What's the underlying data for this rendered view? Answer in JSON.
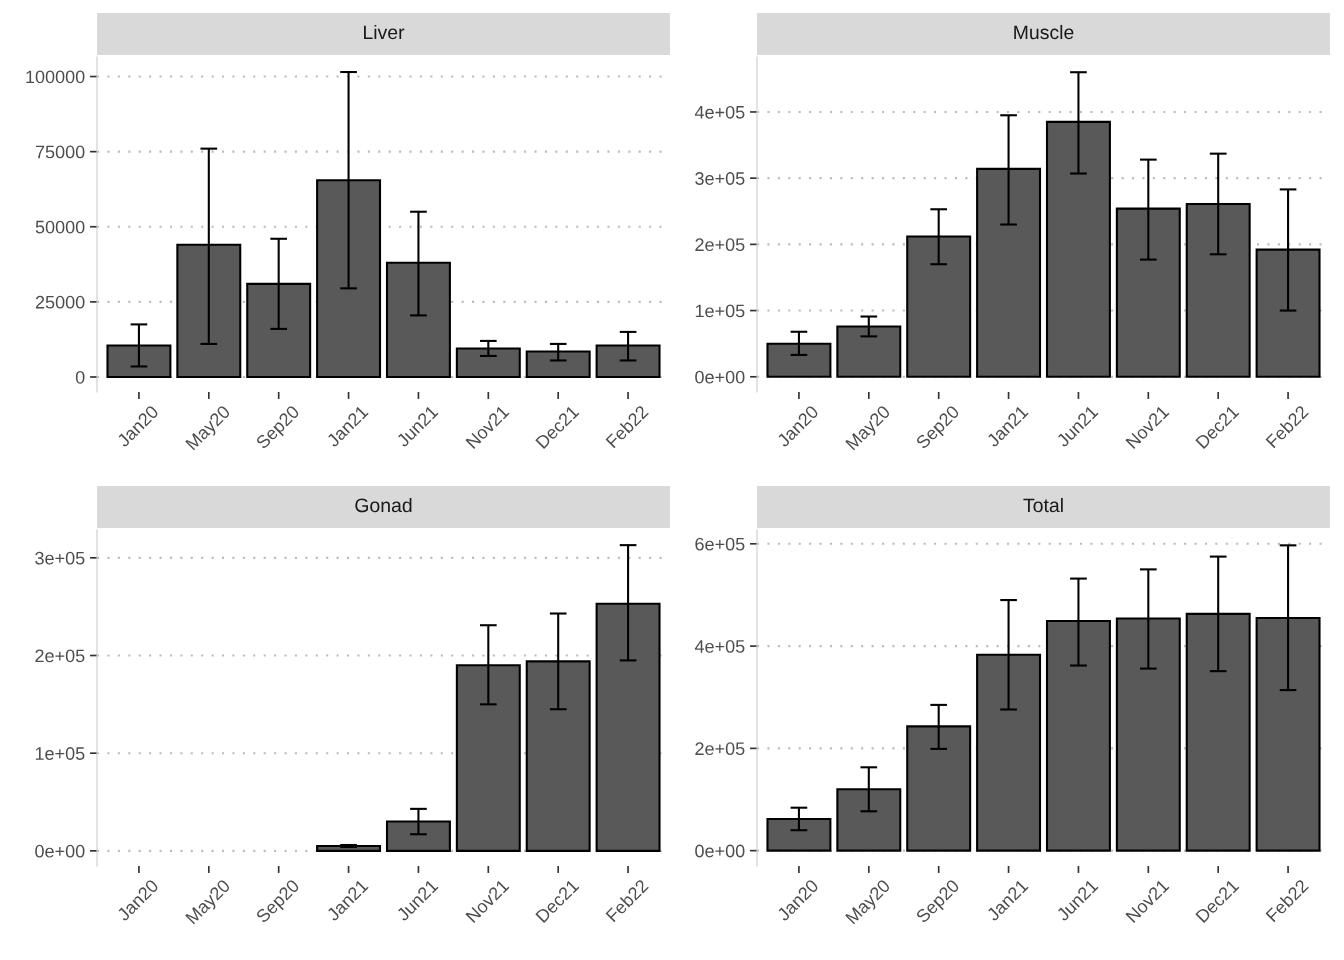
{
  "chart_data": [
    {
      "type": "bar",
      "title": "Liver",
      "categories": [
        "Jan20",
        "May20",
        "Sep20",
        "Jan21",
        "Jun21",
        "Nov21",
        "Dec21",
        "Feb22"
      ],
      "color": "#595959",
      "grid": "y",
      "values": [
        10500,
        44000,
        31000,
        65500,
        38000,
        9500,
        8500,
        10500
      ],
      "errors": [
        [
          3500,
          17500
        ],
        [
          11000,
          76000
        ],
        [
          16000,
          46000
        ],
        [
          29500,
          101500
        ],
        [
          20500,
          55000
        ],
        [
          7000,
          12000
        ],
        [
          5500,
          11000
        ],
        [
          5500,
          15000
        ]
      ],
      "ylim": [
        -5000,
        106500
      ],
      "yticks": [
        0,
        25000,
        50000,
        75000,
        100000
      ]
    },
    {
      "type": "bar",
      "title": "Muscle",
      "categories": [
        "Jan20",
        "May20",
        "Sep20",
        "Jan21",
        "Jun21",
        "Nov21",
        "Dec21",
        "Feb22"
      ],
      "color": "#595959",
      "grid": "y",
      "values": [
        50000,
        76000,
        212000,
        314000,
        385000,
        254000,
        261000,
        192000
      ],
      "errors": [
        [
          33000,
          68000
        ],
        [
          61000,
          91000
        ],
        [
          170000,
          253000
        ],
        [
          230000,
          395000
        ],
        [
          307000,
          460000
        ],
        [
          177000,
          328000
        ],
        [
          185000,
          337000
        ],
        [
          100000,
          283000
        ]
      ],
      "ylim": [
        -23000,
        483000
      ],
      "yticks": [
        {
          "value": 0,
          "label": "0e+00"
        },
        {
          "value": 100000,
          "label": "1e+05"
        },
        {
          "value": 200000,
          "label": "2e+05"
        },
        {
          "value": 300000,
          "label": "3e+05"
        },
        {
          "value": 400000,
          "label": "4e+05"
        }
      ]
    },
    {
      "type": "bar",
      "title": "Gonad",
      "categories": [
        "Jan20",
        "May20",
        "Sep20",
        "Jan21",
        "Jun21",
        "Nov21",
        "Dec21",
        "Feb22"
      ],
      "color": "#595959",
      "grid": "y",
      "values": [
        null,
        null,
        null,
        5000,
        30000,
        190000,
        194000,
        253000
      ],
      "errors": [
        null,
        null,
        null,
        [
          4000,
          6000
        ],
        [
          17000,
          43000
        ],
        [
          150000,
          231000
        ],
        [
          145000,
          243000
        ],
        [
          195000,
          313000
        ]
      ],
      "ylim": [
        -15500,
        328500
      ],
      "yticks": [
        {
          "value": 0,
          "label": "0e+00"
        },
        {
          "value": 100000,
          "label": "1e+05"
        },
        {
          "value": 200000,
          "label": "2e+05"
        },
        {
          "value": 300000,
          "label": "3e+05"
        }
      ]
    },
    {
      "type": "bar",
      "title": "Total",
      "categories": [
        "Jan20",
        "May20",
        "Sep20",
        "Jan21",
        "Jun21",
        "Nov21",
        "Dec21",
        "Feb22"
      ],
      "color": "#595959",
      "grid": "y",
      "values": [
        62000,
        120000,
        243000,
        383000,
        449000,
        454000,
        463000,
        455000
      ],
      "errors": [
        [
          40000,
          84000
        ],
        [
          77000,
          163000
        ],
        [
          199000,
          285000
        ],
        [
          276000,
          490000
        ],
        [
          362000,
          532000
        ],
        [
          356000,
          550000
        ],
        [
          351000,
          575000
        ],
        [
          314000,
          597000
        ]
      ],
      "ylim": [
        -30000,
        627000
      ],
      "yticks": [
        {
          "value": 0,
          "label": "0e+00"
        },
        {
          "value": 200000,
          "label": "2e+05"
        },
        {
          "value": 400000,
          "label": "4e+05"
        },
        {
          "value": 600000,
          "label": "6e+05"
        }
      ]
    }
  ]
}
